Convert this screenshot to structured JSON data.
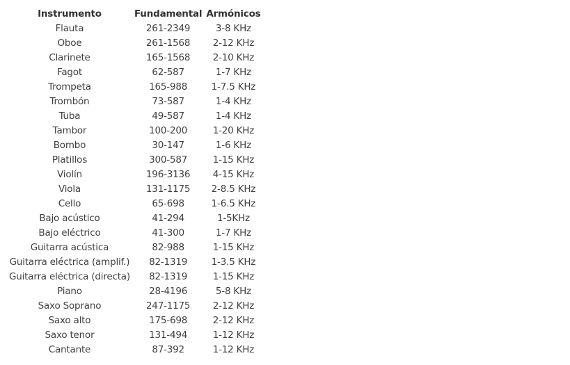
{
  "table": {
    "headers": [
      "Instrumento",
      "Fundamental",
      "Armónicos"
    ],
    "rows": [
      [
        "Flauta",
        "261-2349",
        "3-8 KHz"
      ],
      [
        "Oboe",
        "261-1568",
        "2-12 KHz"
      ],
      [
        "Clarinete",
        "165-1568",
        "2-10 KHz"
      ],
      [
        "Fagot",
        "62-587",
        "1-7 KHz"
      ],
      [
        "Trompeta",
        "165-988",
        "1-7.5 KHz"
      ],
      [
        "Trombón",
        "73-587",
        "1-4 KHz"
      ],
      [
        "Tuba",
        "49-587",
        "1-4 KHz"
      ],
      [
        "Tambor",
        "100-200",
        "1-20 KHz"
      ],
      [
        "Bombo",
        "30-147",
        "1-6 KHz"
      ],
      [
        "Platillos",
        "300-587",
        "1-15 KHz"
      ],
      [
        "Violín",
        "196-3136",
        "4-15 KHz"
      ],
      [
        "Viola",
        "131-1175",
        "2-8.5 KHz"
      ],
      [
        "Cello",
        "65-698",
        "1-6.5 KHz"
      ],
      [
        "Bajo acústico",
        "41-294",
        "1-5KHz"
      ],
      [
        "Bajo eléctrico",
        "41-300",
        "1-7 KHz"
      ],
      [
        "Guitarra acústica",
        "82-988",
        "1-15 KHz"
      ],
      [
        "Guitarra eléctrica (amplif.)",
        "82-1319",
        "1-3.5 KHz"
      ],
      [
        "Guitarra eléctrica (directa)",
        "82-1319",
        "1-15 KHz"
      ],
      [
        "Piano",
        "28-4196",
        "5-8 KHz"
      ],
      [
        "Saxo Soprano",
        "247-1175",
        "2-12 KHz"
      ],
      [
        "Saxo alto",
        "175-698",
        "2-12 KHz"
      ],
      [
        "Saxo tenor",
        "131-494",
        "1-12 KHz"
      ],
      [
        "Cantante",
        "87-392",
        "1-12 KHz"
      ]
    ]
  }
}
